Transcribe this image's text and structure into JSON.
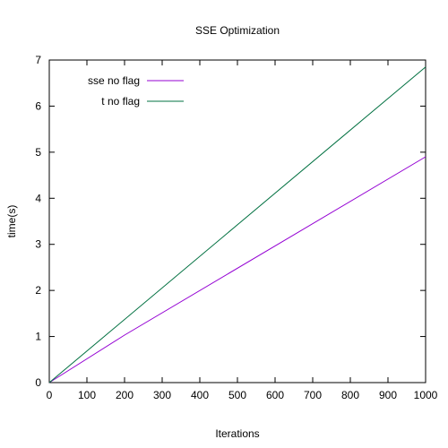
{
  "chart_data": {
    "type": "line",
    "title": "SSE Optimization",
    "xlabel": "Iterations",
    "ylabel": "time(s)",
    "xlim": [
      0,
      1000
    ],
    "ylim": [
      0,
      7
    ],
    "xticks": [
      0,
      100,
      200,
      300,
      400,
      500,
      600,
      700,
      800,
      900,
      1000
    ],
    "yticks": [
      0,
      1,
      2,
      3,
      4,
      5,
      6,
      7
    ],
    "grid": false,
    "legend_position": "top-left",
    "series": [
      {
        "name": "sse no flag",
        "color": "#9400d3",
        "x": [
          0,
          200,
          1000
        ],
        "y": [
          0,
          1.03,
          4.9
        ]
      },
      {
        "name": "t no flag",
        "color": "#007040",
        "x": [
          0,
          1000
        ],
        "y": [
          0,
          6.85
        ]
      }
    ]
  }
}
